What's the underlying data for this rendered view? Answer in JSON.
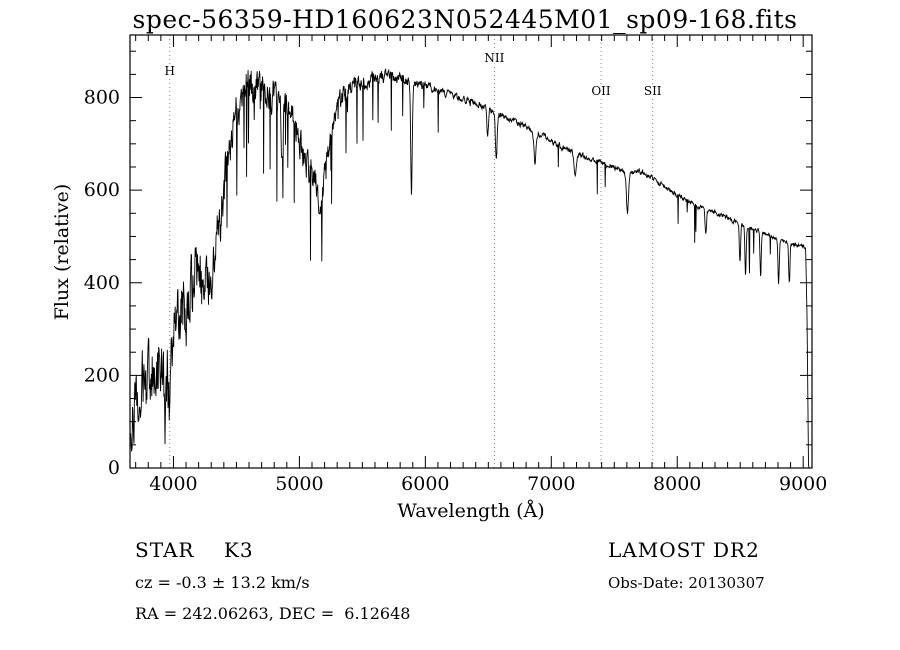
{
  "title": "spec-56359-HD160623N052445M01_sp09-168.fits",
  "footer": {
    "class_line": "STAR    K3",
    "survey": "LAMOST DR2",
    "cz_line": "cz = -0.3 ± 13.2 km/s",
    "obs_date": "Obs-Date: 20130307",
    "radec_line": "RA = 242.06263, DEC =  6.12648"
  },
  "chart_data": {
    "type": "line",
    "title": "spec-56359-HD160623N052445M01_sp09-168.fits",
    "xlabel": "Wavelength (Å)",
    "ylabel": "Flux (relative)",
    "xlim": [
      3655,
      9070
    ],
    "ylim": [
      0,
      935
    ],
    "xticks": [
      4000,
      5000,
      6000,
      7000,
      8000,
      9000
    ],
    "yticks": [
      0,
      200,
      400,
      600,
      800
    ],
    "x_minor_step": 100,
    "y_minor_step": 50,
    "grid": false,
    "line_color": "#000000",
    "marker_color": "#888888",
    "spectral_lines": [
      {
        "label": "H",
        "wavelength": 3970,
        "label_y": 75
      },
      {
        "label": "NII",
        "wavelength": 6548,
        "label_y": 62
      },
      {
        "label": "OII",
        "wavelength": 7395,
        "label_y": 95
      },
      {
        "label": "SII",
        "wavelength": 7805,
        "label_y": 95
      }
    ],
    "series": [
      {
        "name": "flux",
        "seed": 20130307,
        "step": 3,
        "envelope": [
          [
            3660,
            100
          ],
          [
            3700,
            145
          ],
          [
            3760,
            175
          ],
          [
            3820,
            195
          ],
          [
            3880,
            225
          ],
          [
            3940,
            235
          ],
          [
            4000,
            300
          ],
          [
            4060,
            335
          ],
          [
            4120,
            370
          ],
          [
            4180,
            430
          ],
          [
            4240,
            440
          ],
          [
            4300,
            430
          ],
          [
            4360,
            530
          ],
          [
            4420,
            640
          ],
          [
            4470,
            730
          ],
          [
            4520,
            790
          ],
          [
            4570,
            825
          ],
          [
            4620,
            830
          ],
          [
            4670,
            815
          ],
          [
            4720,
            825
          ],
          [
            4770,
            805
          ],
          [
            4820,
            800
          ],
          [
            4870,
            785
          ],
          [
            4920,
            790
          ],
          [
            4960,
            765
          ],
          [
            5000,
            705
          ],
          [
            5050,
            655
          ],
          [
            5100,
            635
          ],
          [
            5150,
            620
          ],
          [
            5200,
            650
          ],
          [
            5250,
            720
          ],
          [
            5300,
            780
          ],
          [
            5350,
            805
          ],
          [
            5400,
            822
          ],
          [
            5450,
            832
          ],
          [
            5500,
            832
          ],
          [
            5600,
            842
          ],
          [
            5700,
            847
          ],
          [
            5800,
            842
          ],
          [
            5900,
            832
          ],
          [
            6000,
            826
          ],
          [
            6100,
            816
          ],
          [
            6200,
            806
          ],
          [
            6300,
            796
          ],
          [
            6400,
            786
          ],
          [
            6500,
            776
          ],
          [
            6600,
            762
          ],
          [
            6700,
            749
          ],
          [
            6800,
            736
          ],
          [
            6900,
            722
          ],
          [
            7000,
            706
          ],
          [
            7100,
            691
          ],
          [
            7200,
            679
          ],
          [
            7300,
            669
          ],
          [
            7400,
            659
          ],
          [
            7500,
            649
          ],
          [
            7600,
            636
          ],
          [
            7700,
            641
          ],
          [
            7800,
            626
          ],
          [
            7900,
            606
          ],
          [
            8000,
            589
          ],
          [
            8100,
            573
          ],
          [
            8200,
            561
          ],
          [
            8300,
            551
          ],
          [
            8400,
            541
          ],
          [
            8500,
            526
          ],
          [
            8600,
            516
          ],
          [
            8700,
            506
          ],
          [
            8800,
            493
          ],
          [
            8900,
            484
          ],
          [
            9000,
            479
          ],
          [
            9020,
            472
          ],
          [
            9032,
            300
          ],
          [
            9042,
            5
          ],
          [
            9048,
            0
          ]
        ],
        "noise_amplitude": [
          [
            3660,
            115
          ],
          [
            3900,
            110
          ],
          [
            4100,
            105
          ],
          [
            4300,
            92
          ],
          [
            4500,
            70
          ],
          [
            4700,
            62
          ],
          [
            4900,
            55
          ],
          [
            5100,
            48
          ],
          [
            5300,
            34
          ],
          [
            5500,
            24
          ],
          [
            5700,
            18
          ],
          [
            6000,
            14
          ],
          [
            6400,
            11
          ],
          [
            6800,
            10
          ],
          [
            7200,
            9
          ],
          [
            7600,
            8
          ],
          [
            8000,
            8
          ],
          [
            8400,
            8
          ],
          [
            8800,
            7
          ],
          [
            9000,
            6
          ],
          [
            9048,
            2
          ]
        ],
        "spike_probability": [
          [
            3660,
            0.0
          ],
          [
            4200,
            0.02
          ],
          [
            4400,
            0.05
          ],
          [
            5000,
            0.06
          ],
          [
            5300,
            0.05
          ],
          [
            5500,
            0.03
          ],
          [
            6000,
            0.02
          ],
          [
            7000,
            0.015
          ],
          [
            8000,
            0.012
          ],
          [
            8500,
            0.02
          ],
          [
            9000,
            0.01
          ]
        ],
        "spike_depth": [
          [
            3660,
            100
          ],
          [
            4400,
            220
          ],
          [
            5000,
            230
          ],
          [
            5300,
            200
          ],
          [
            5500,
            140
          ],
          [
            6000,
            110
          ],
          [
            7000,
            90
          ],
          [
            8000,
            80
          ],
          [
            8500,
            110
          ],
          [
            9000,
            80
          ]
        ],
        "absorption_features": [
          [
            3934,
            140,
            9
          ],
          [
            3970,
            150,
            10
          ],
          [
            4101,
            110,
            8
          ],
          [
            4227,
            70,
            6
          ],
          [
            4300,
            80,
            14
          ],
          [
            4861,
            110,
            7
          ],
          [
            5170,
            60,
            20
          ],
          [
            5890,
            255,
            6
          ],
          [
            6495,
            60,
            6
          ],
          [
            6563,
            95,
            7
          ],
          [
            6870,
            65,
            8
          ],
          [
            7190,
            45,
            9
          ],
          [
            7605,
            85,
            8
          ],
          [
            8227,
            55,
            6
          ],
          [
            8498,
            85,
            5
          ],
          [
            8542,
            105,
            5
          ],
          [
            8662,
            95,
            5
          ],
          [
            8805,
            95,
            5
          ],
          [
            8890,
            85,
            5
          ]
        ]
      }
    ]
  }
}
